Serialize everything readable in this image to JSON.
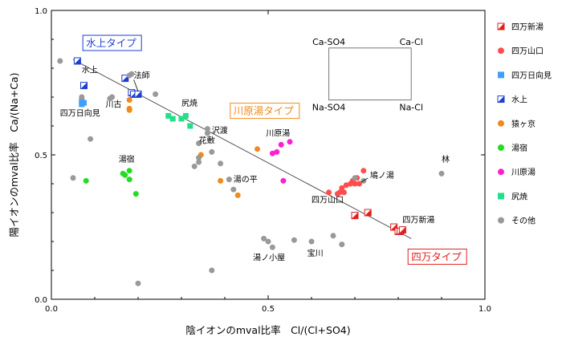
{
  "chart_data": {
    "type": "scatter",
    "xlabel": "陰イオンのmval比率　Cl/(Cl+SO4)",
    "ylabel": "陽イオンのmval比率　Ca/(Na+Ca)",
    "xlim": [
      0,
      1
    ],
    "ylim": [
      0,
      1
    ],
    "x_ticks": [
      "0.0",
      "0.5",
      "1.0"
    ],
    "y_ticks": [
      "0.0",
      "0.5",
      "1.0"
    ],
    "grid": false,
    "legend_position": "right",
    "trend_line": {
      "x": [
        0.05,
        0.83
      ],
      "y": [
        0.83,
        0.21
      ]
    },
    "inset": {
      "labels": {
        "top_left": "Ca-SO4",
        "top_right": "Ca-Cl",
        "bottom_left": "Na-SO4",
        "bottom_right": "Na-Cl"
      },
      "rect": {
        "x0": 0.64,
        "x1": 0.83,
        "y0": 0.69,
        "y1": 0.87
      }
    },
    "type_labels": [
      {
        "text": "水上タイプ",
        "x": 0.08,
        "y": 0.875,
        "color": "#1f3fcf"
      },
      {
        "text": "川原湯タイプ",
        "x": 0.42,
        "y": 0.64,
        "color": "#f08a1c"
      },
      {
        "text": "四万タイプ",
        "x": 0.83,
        "y": 0.135,
        "color": "#e02020"
      }
    ],
    "annotations": [
      {
        "text": "水上",
        "x": 0.07,
        "y": 0.785
      },
      {
        "text": "法師",
        "x": 0.19,
        "y": 0.765
      },
      {
        "text": "四万日向見",
        "x": 0.02,
        "y": 0.635
      },
      {
        "text": "川古",
        "x": 0.125,
        "y": 0.665
      },
      {
        "text": "尻焼",
        "x": 0.3,
        "y": 0.67
      },
      {
        "text": "沢渡",
        "x": 0.37,
        "y": 0.575
      },
      {
        "text": "花敷",
        "x": 0.34,
        "y": 0.54
      },
      {
        "text": "川原湯",
        "x": 0.495,
        "y": 0.565
      },
      {
        "text": "湯宿",
        "x": 0.155,
        "y": 0.475
      },
      {
        "text": "湯の平",
        "x": 0.42,
        "y": 0.405
      },
      {
        "text": "鳩ノ湯",
        "x": 0.735,
        "y": 0.42
      },
      {
        "text": "四万山口",
        "x": 0.6,
        "y": 0.335
      },
      {
        "text": "林",
        "x": 0.9,
        "y": 0.475
      },
      {
        "text": "四万新湯",
        "x": 0.81,
        "y": 0.265
      },
      {
        "text": "湯ノ小屋",
        "x": 0.465,
        "y": 0.135
      },
      {
        "text": "宝川",
        "x": 0.59,
        "y": 0.15
      }
    ],
    "series": [
      {
        "name": "四万新湯",
        "marker": "half-square",
        "color": "#e02020",
        "points": [
          [
            0.7,
            0.29
          ],
          [
            0.73,
            0.3
          ],
          [
            0.79,
            0.25
          ],
          [
            0.8,
            0.235
          ],
          [
            0.805,
            0.235
          ],
          [
            0.81,
            0.24
          ]
        ]
      },
      {
        "name": "四万山口",
        "marker": "circle",
        "color": "#ff4d4d",
        "points": [
          [
            0.64,
            0.37
          ],
          [
            0.66,
            0.365
          ],
          [
            0.665,
            0.37
          ],
          [
            0.67,
            0.385
          ],
          [
            0.675,
            0.37
          ],
          [
            0.68,
            0.395
          ],
          [
            0.69,
            0.4
          ],
          [
            0.695,
            0.41
          ],
          [
            0.7,
            0.4
          ],
          [
            0.705,
            0.42
          ],
          [
            0.71,
            0.4
          ],
          [
            0.72,
            0.445
          ]
        ]
      },
      {
        "name": "四万日向見",
        "marker": "square",
        "color": "#3f9fff",
        "points": [
          [
            0.07,
            0.685
          ],
          [
            0.075,
            0.68
          ],
          [
            0.07,
            0.675
          ]
        ]
      },
      {
        "name": "水上",
        "marker": "half-square",
        "color": "#1f3fcf",
        "points": [
          [
            0.06,
            0.825
          ],
          [
            0.075,
            0.74
          ],
          [
            0.17,
            0.765
          ],
          [
            0.185,
            0.715
          ],
          [
            0.19,
            0.71
          ],
          [
            0.2,
            0.71
          ]
        ]
      },
      {
        "name": "猿ヶ京",
        "marker": "circle",
        "color": "#f08a1c",
        "points": [
          [
            0.18,
            0.69
          ],
          [
            0.18,
            0.66
          ],
          [
            0.18,
            0.655
          ],
          [
            0.345,
            0.5
          ],
          [
            0.39,
            0.41
          ],
          [
            0.43,
            0.36
          ],
          [
            0.475,
            0.52
          ]
        ]
      },
      {
        "name": "湯宿",
        "marker": "circle",
        "color": "#22dd22",
        "points": [
          [
            0.08,
            0.41
          ],
          [
            0.165,
            0.435
          ],
          [
            0.17,
            0.43
          ],
          [
            0.18,
            0.445
          ],
          [
            0.18,
            0.415
          ],
          [
            0.195,
            0.365
          ]
        ]
      },
      {
        "name": "川原湯",
        "marker": "circle",
        "color": "#ff1fd0",
        "points": [
          [
            0.51,
            0.505
          ],
          [
            0.52,
            0.51
          ],
          [
            0.53,
            0.535
          ],
          [
            0.55,
            0.545
          ],
          [
            0.535,
            0.41
          ]
        ]
      },
      {
        "name": "尻焼",
        "marker": "square",
        "color": "#22e08a",
        "points": [
          [
            0.27,
            0.635
          ],
          [
            0.28,
            0.625
          ],
          [
            0.3,
            0.625
          ],
          [
            0.31,
            0.635
          ],
          [
            0.32,
            0.6
          ]
        ]
      },
      {
        "name": "その他",
        "marker": "circle",
        "color": "#999999",
        "points": [
          [
            0.02,
            0.825
          ],
          [
            0.07,
            0.7
          ],
          [
            0.05,
            0.42
          ],
          [
            0.09,
            0.555
          ],
          [
            0.135,
            0.695
          ],
          [
            0.14,
            0.7
          ],
          [
            0.18,
            0.775
          ],
          [
            0.185,
            0.78
          ],
          [
            0.24,
            0.71
          ],
          [
            0.34,
            0.54
          ],
          [
            0.36,
            0.575
          ],
          [
            0.36,
            0.59
          ],
          [
            0.37,
            0.51
          ],
          [
            0.33,
            0.46
          ],
          [
            0.34,
            0.49
          ],
          [
            0.34,
            0.475
          ],
          [
            0.39,
            0.47
          ],
          [
            0.41,
            0.415
          ],
          [
            0.42,
            0.38
          ],
          [
            0.2,
            0.055
          ],
          [
            0.37,
            0.1
          ],
          [
            0.49,
            0.21
          ],
          [
            0.5,
            0.2
          ],
          [
            0.51,
            0.18
          ],
          [
            0.56,
            0.205
          ],
          [
            0.6,
            0.2
          ],
          [
            0.65,
            0.22
          ],
          [
            0.67,
            0.19
          ],
          [
            0.7,
            0.42
          ],
          [
            0.72,
            0.41
          ],
          [
            0.9,
            0.435
          ]
        ]
      }
    ]
  }
}
